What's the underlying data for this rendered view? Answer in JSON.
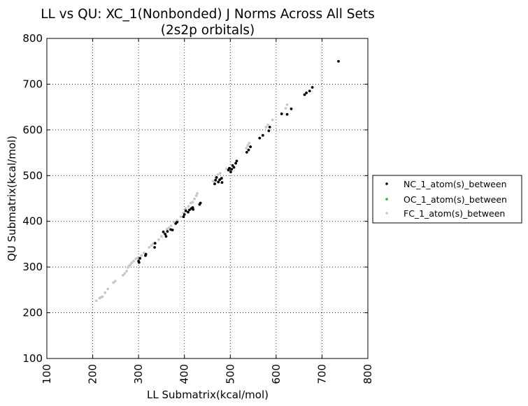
{
  "chart_data": {
    "type": "scatter",
    "title": "LL vs QU: XC_1(Nonbonded) J Norms Across All Sets",
    "subtitle": "(2s2p orbitals)",
    "xlabel": "LL Submatrix(kcal/mol)",
    "ylabel": "QU Submatrix(kcal/mol)",
    "xlim": [
      100,
      800
    ],
    "ylim": [
      100,
      800
    ],
    "xticks": [
      "100",
      "200",
      "300",
      "400",
      "500",
      "600",
      "700",
      "800"
    ],
    "yticks": [
      "100",
      "200",
      "300",
      "400",
      "500",
      "600",
      "700",
      "800"
    ],
    "grid": true,
    "legend_position": "outside-right",
    "series": [
      {
        "name": "NC_1_atom(s)_between",
        "color": "#000000",
        "points": [
          [
            300,
            313
          ],
          [
            301,
            310
          ],
          [
            303,
            319
          ],
          [
            315,
            325
          ],
          [
            316,
            328
          ],
          [
            335,
            343
          ],
          [
            336,
            352
          ],
          [
            354,
            377
          ],
          [
            358,
            372
          ],
          [
            360,
            367
          ],
          [
            363,
            378
          ],
          [
            370,
            382
          ],
          [
            374,
            381
          ],
          [
            381,
            395
          ],
          [
            384,
            398
          ],
          [
            398,
            410
          ],
          [
            400,
            415
          ],
          [
            403,
            423
          ],
          [
            408,
            420
          ],
          [
            411,
            425
          ],
          [
            415,
            428
          ],
          [
            418,
            430
          ],
          [
            419,
            426
          ],
          [
            433,
            437
          ],
          [
            435,
            440
          ],
          [
            466,
            482
          ],
          [
            468,
            490
          ],
          [
            470,
            496
          ],
          [
            474,
            486
          ],
          [
            477,
            491
          ],
          [
            481,
            494
          ],
          [
            482,
            485
          ],
          [
            496,
            512
          ],
          [
            498,
            516
          ],
          [
            501,
            508
          ],
          [
            503,
            514
          ],
          [
            505,
            522
          ],
          [
            508,
            518
          ],
          [
            512,
            527
          ],
          [
            514,
            532
          ],
          [
            536,
            551
          ],
          [
            540,
            556
          ],
          [
            544,
            563
          ],
          [
            564,
            582
          ],
          [
            571,
            588
          ],
          [
            584,
            598
          ],
          [
            586,
            606
          ],
          [
            612,
            635
          ],
          [
            624,
            634
          ],
          [
            633,
            646
          ],
          [
            662,
            677
          ],
          [
            666,
            681
          ],
          [
            673,
            685
          ],
          [
            679,
            693
          ],
          [
            736,
            750
          ]
        ]
      },
      {
        "name": "OC_1_atom(s)_between",
        "color": "#22bb22",
        "points": []
      },
      {
        "name": "FC_1_atom(s)_between",
        "color": "#c8c8c8",
        "points": [
          [
            208,
            226
          ],
          [
            215,
            232
          ],
          [
            218,
            234
          ],
          [
            221,
            235
          ],
          [
            227,
            244
          ],
          [
            233,
            252
          ],
          [
            245,
            266
          ],
          [
            249,
            269
          ],
          [
            266,
            282
          ],
          [
            270,
            286
          ],
          [
            274,
            291
          ],
          [
            277,
            299
          ],
          [
            279,
            302
          ],
          [
            282,
            305
          ],
          [
            285,
            309
          ],
          [
            289,
            313
          ],
          [
            294,
            318
          ],
          [
            298,
            320
          ],
          [
            306,
            325
          ],
          [
            312,
            331
          ],
          [
            323,
            343
          ],
          [
            328,
            347
          ],
          [
            332,
            351
          ],
          [
            344,
            360
          ],
          [
            350,
            367
          ],
          [
            356,
            374
          ],
          [
            362,
            383
          ],
          [
            366,
            386
          ],
          [
            371,
            390
          ],
          [
            378,
            398
          ],
          [
            384,
            402
          ],
          [
            392,
            410
          ],
          [
            398,
            418
          ],
          [
            403,
            428
          ],
          [
            409,
            433
          ],
          [
            414,
            440
          ],
          [
            418,
            442
          ],
          [
            422,
            449
          ],
          [
            426,
            456
          ],
          [
            428,
            461
          ],
          [
            463,
            488
          ],
          [
            468,
            495
          ],
          [
            473,
            502
          ],
          [
            478,
            505
          ],
          [
            492,
            515
          ],
          [
            535,
            560
          ],
          [
            538,
            566
          ],
          [
            541,
            571
          ],
          [
            578,
            606
          ],
          [
            582,
            611
          ],
          [
            592,
            622
          ],
          [
            621,
            647
          ],
          [
            624,
            655
          ]
        ]
      }
    ]
  }
}
